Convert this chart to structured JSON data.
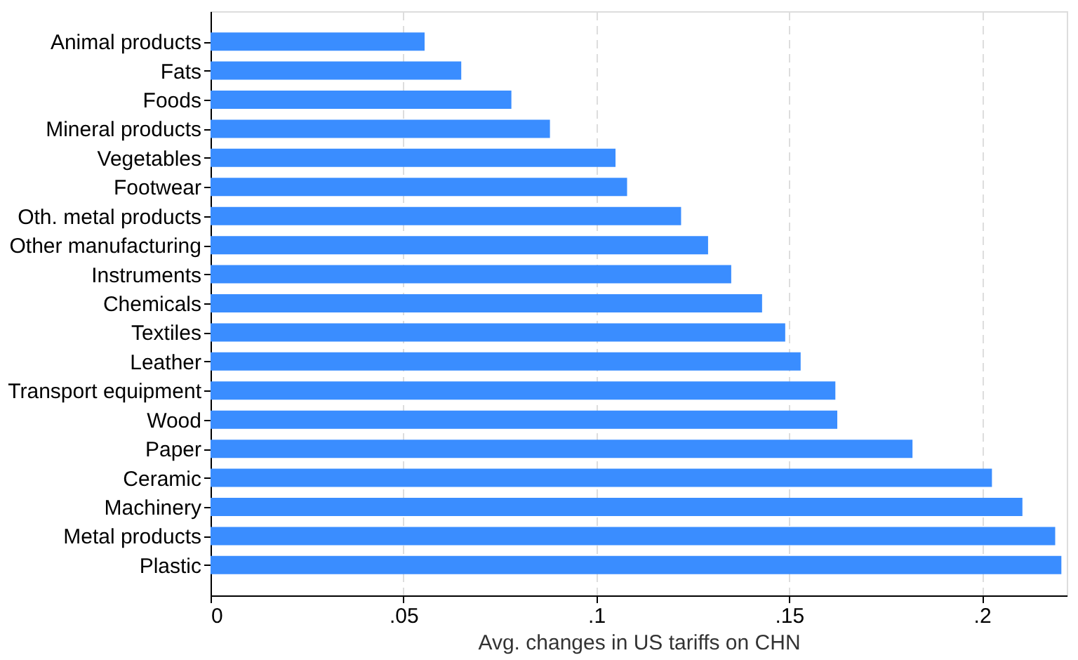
{
  "chart_data": {
    "type": "bar",
    "orientation": "horizontal",
    "xlabel": "Avg. changes in US tariffs on CHN",
    "categories": [
      "Animal products",
      "Fats",
      "Foods",
      "Mineral products",
      "Vegetables",
      "Footwear",
      "Oth. metal products",
      "Other manufacturing",
      "Instruments",
      "Chemicals",
      "Textiles",
      "Leather",
      "Transport equipment",
      "Wood",
      "Paper",
      "Ceramic",
      "Machinery",
      "Metal products",
      "Plastic"
    ],
    "values": [
      0.0555,
      0.065,
      0.078,
      0.088,
      0.105,
      0.108,
      0.122,
      0.129,
      0.135,
      0.143,
      0.149,
      0.153,
      0.162,
      0.1625,
      0.182,
      0.2026,
      0.2105,
      0.219,
      0.2206
    ],
    "color": "#3a8dff",
    "xlim": [
      0,
      0.222
    ],
    "xticks": [
      {
        "value": 0,
        "label": "0"
      },
      {
        "value": 0.05,
        "label": ".05"
      },
      {
        "value": 0.1,
        "label": ".1"
      },
      {
        "value": 0.15,
        "label": ".15"
      },
      {
        "value": 0.2,
        "label": ".2"
      }
    ],
    "grid": "x"
  }
}
